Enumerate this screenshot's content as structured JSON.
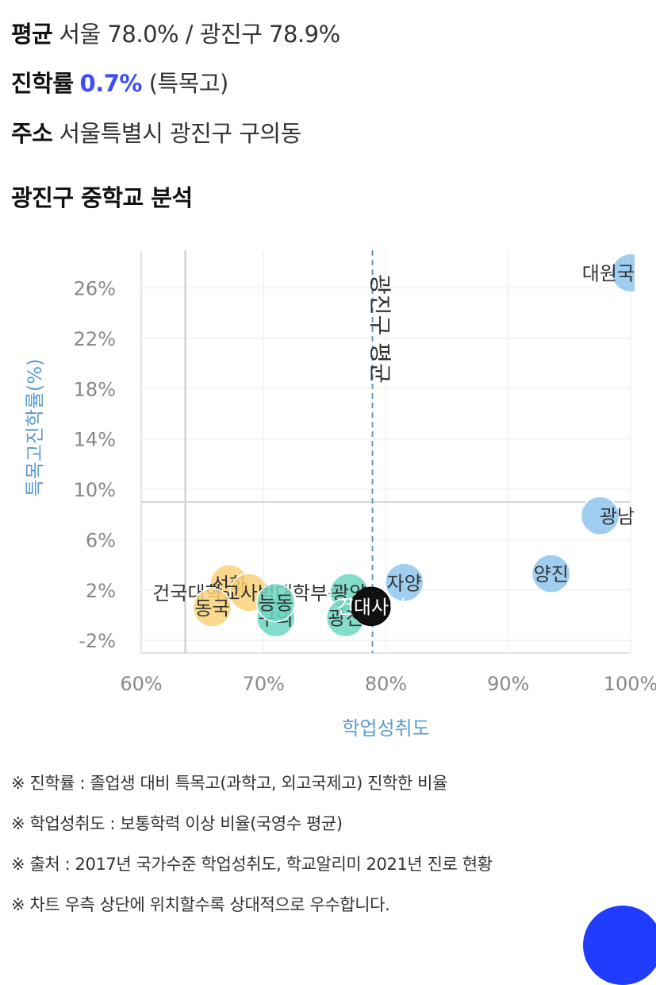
{
  "summary": {
    "avg_label": "평균",
    "avg_value": "서울 78.0% / 광진구 78.9%",
    "rate_label": "진학률",
    "rate_value": "0.7%",
    "rate_suffix": "(특목고)",
    "addr_label": "주소",
    "addr_value": "서울특별시 광진구 구의동"
  },
  "section_title": "광진구 중학교 분석",
  "chart_data": {
    "type": "scatter",
    "title": "",
    "xlabel": "학업성취도",
    "ylabel": "특목고진학률(%)",
    "xlim": [
      60,
      100
    ],
    "ylim": [
      -3,
      29
    ],
    "x_ticks": [
      60,
      70,
      80,
      90,
      100
    ],
    "x_tick_labels": [
      "60%",
      "70%",
      "80%",
      "90%",
      "100%"
    ],
    "y_ticks": [
      -2,
      2,
      6,
      10,
      14,
      18,
      22,
      26
    ],
    "y_tick_labels": [
      "-2%",
      "2%",
      "6%",
      "10%",
      "14%",
      "18%",
      "22%",
      "26%"
    ],
    "grid": true,
    "reference_lines": {
      "vertical_solid_x": 63.6,
      "horizontal_solid_y": 9,
      "vertical_dashed_x": 78.9,
      "vertical_dashed_label": "광진구 평균"
    },
    "points": [
      {
        "name": "대원국",
        "x": 100,
        "y": 27.2,
        "color": "#8fc6ee"
      },
      {
        "name": "광남",
        "x": 97.5,
        "y": 7.9,
        "color": "#8fc6ee"
      },
      {
        "name": "양진",
        "x": 93.5,
        "y": 3.3,
        "color": "#8fc6ee"
      },
      {
        "name": "자양",
        "x": 81.5,
        "y": 2.6,
        "color": "#8fc6ee"
      },
      {
        "name": "선화",
        "x": 67.2,
        "y": 2.5,
        "color": "#f9d27a"
      },
      {
        "name": "건국대학교사범대학부속",
        "x": 68.8,
        "y": 1.8,
        "color": "#f9d27a"
      },
      {
        "name": "동국",
        "x": 65.8,
        "y": 0.6,
        "color": "#f9d27a"
      },
      {
        "name": "광양",
        "x": 77.0,
        "y": 1.8,
        "color": "#6fd6c2"
      },
      {
        "name": "구의",
        "x": 71.0,
        "y": -0.2,
        "color": "#6fd6c2"
      },
      {
        "name": "광진",
        "x": 76.7,
        "y": -0.2,
        "color": "#6fd6c2"
      },
      {
        "name": "능동",
        "x": 71.0,
        "y": 1.0,
        "color": "#6fd6c2"
      },
      {
        "name": "건대사범",
        "x": 78.8,
        "y": 0.7,
        "color": "#111111"
      }
    ]
  },
  "notes": [
    "※ 진학률 : 졸업생 대비 특목고(과학고, 외고국제고) 진학한 비율",
    "※ 학업성취도 : 보통학력 이상 비율(국영수 평균)",
    "※ 출처 : 2017년 국가수준 학업성취도, 학교알리미 2021년 진로 현황",
    "※ 차트 우측 상단에 위치할수록 상대적으로 우수합니다."
  ]
}
